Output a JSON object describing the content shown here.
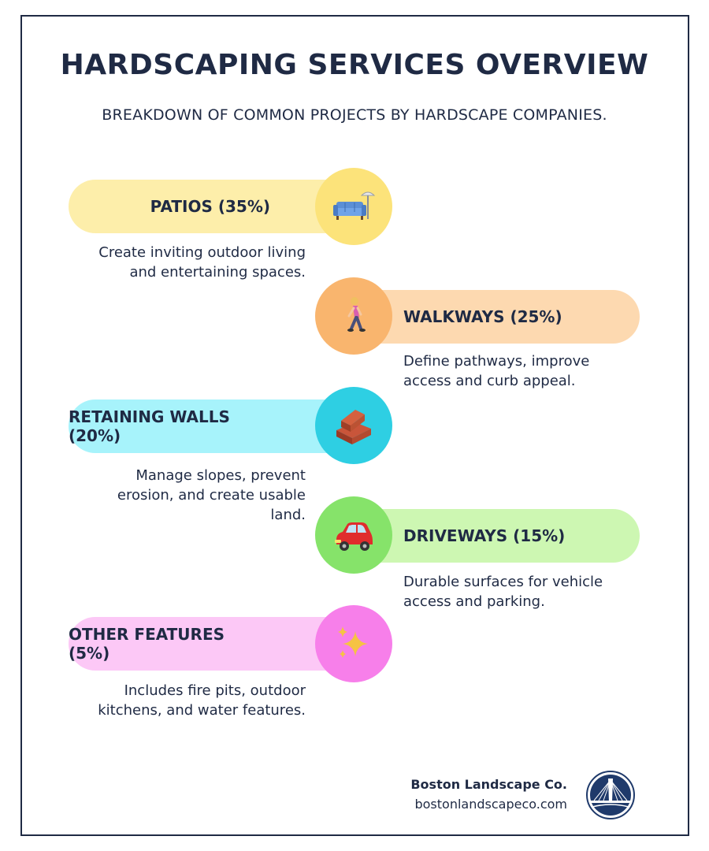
{
  "header": {
    "title": "HARDSCAPING SERVICES OVERVIEW",
    "subtitle": "BREAKDOWN OF COMMON PROJECTS BY HARDSCAPE COMPANIES."
  },
  "services": [
    {
      "label": "PATIOS (35%)",
      "share_percent": 35,
      "description": "Create inviting outdoor living and entertaining spaces.",
      "icon": "couch-and-lamp-icon",
      "pill_color": "#fdeeaa",
      "circle_color": "#fce37a"
    },
    {
      "label": "WALKWAYS (25%)",
      "share_percent": 25,
      "description": "Define pathways, improve access and curb appeal.",
      "icon": "person-walking-icon",
      "pill_color": "#fdd9b0",
      "circle_color": "#f9b56e"
    },
    {
      "label": "RETAINING WALLS (20%)",
      "share_percent": 20,
      "description": "Manage slopes, prevent erosion, and create usable land.",
      "icon": "bricks-icon",
      "pill_color": "#a7f3fb",
      "circle_color": "#2ecfe3"
    },
    {
      "label": "DRIVEWAYS (15%)",
      "share_percent": 15,
      "description": "Durable surfaces for vehicle access and parking.",
      "icon": "car-icon",
      "pill_color": "#cdf7b2",
      "circle_color": "#86e36a"
    },
    {
      "label": "OTHER FEATURES (5%)",
      "share_percent": 5,
      "description": "Includes fire pits, outdoor kitchens, and water features.",
      "icon": "sparkles-icon",
      "pill_color": "#fcc8f6",
      "circle_color": "#f77fea"
    }
  ],
  "footer": {
    "company": "Boston Landscape Co.",
    "website": "bostonlandscapeco.com",
    "logo_icon": "bridge-logo-icon"
  },
  "colors": {
    "text": "#1f2a44",
    "border": "#1f2a44"
  }
}
